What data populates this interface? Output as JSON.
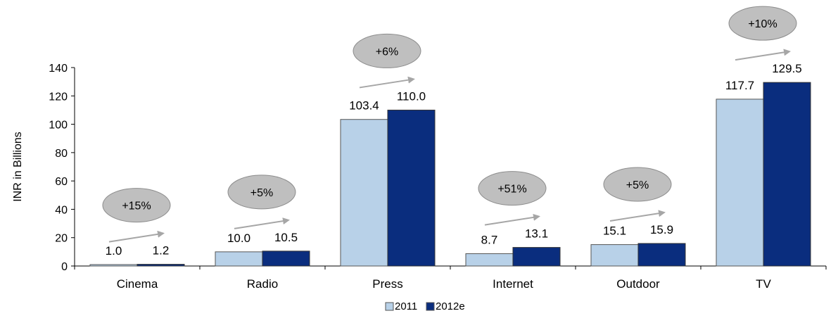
{
  "chart_data": {
    "type": "bar",
    "title": "",
    "xlabel": "",
    "ylabel": "INR in Billions",
    "ylim": [
      0,
      140
    ],
    "yticks": [
      0,
      20,
      40,
      60,
      80,
      100,
      120,
      140
    ],
    "categories": [
      "Cinema",
      "Radio",
      "Press",
      "Internet",
      "Outdoor",
      "TV"
    ],
    "series": [
      {
        "name": "2011",
        "color": "#b8d1e8",
        "values": [
          1.0,
          10.0,
          103.4,
          8.7,
          15.1,
          117.7
        ],
        "labels": [
          "1.0",
          "10.0",
          "103.4",
          "8.7",
          "15.1",
          "117.7"
        ]
      },
      {
        "name": "2012e",
        "color": "#0a2d7e",
        "values": [
          1.2,
          10.5,
          110.0,
          13.1,
          15.9,
          129.5
        ],
        "labels": [
          "1.2",
          "10.5",
          "110.0",
          "13.1",
          "15.9",
          "129.5"
        ]
      }
    ],
    "growth_labels": [
      "+15%",
      "+5%",
      "+6%",
      "+51%",
      "+5%",
      "+10%"
    ],
    "legend_placement": "bottom-center",
    "grid": false
  }
}
